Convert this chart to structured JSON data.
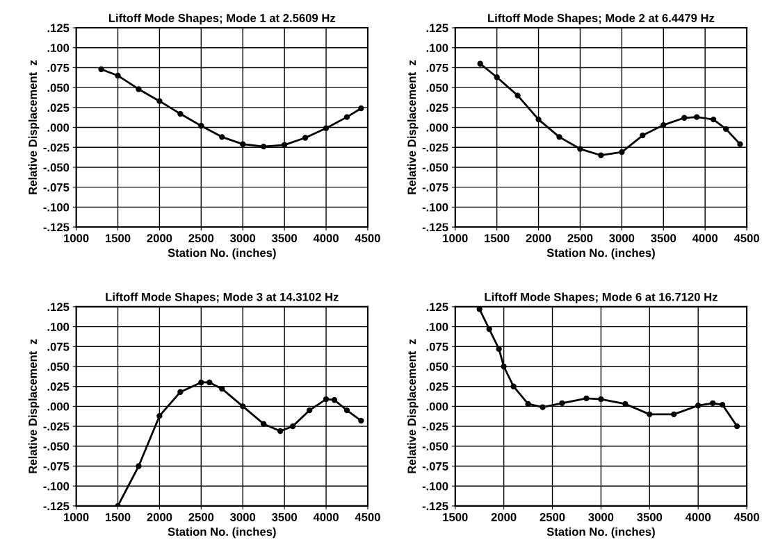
{
  "chart_data": [
    {
      "type": "line",
      "title": "Liftoff Mode Shapes; Mode 1 at 2.5609 Hz",
      "xlabel": "Station No. (inches)",
      "ylabel": "Relative Displacement  z",
      "marker": "circle",
      "grid": true,
      "xlim": [
        1000,
        4500
      ],
      "xticks": [
        1000,
        1500,
        2000,
        2500,
        3000,
        3500,
        4000,
        4500
      ],
      "ylim": [
        -0.125,
        0.125
      ],
      "yticks": [
        {
          "value": -0.125,
          "label": "-.125"
        },
        {
          "value": -0.1,
          "label": "-.100"
        },
        {
          "value": -0.075,
          "label": "-.075"
        },
        {
          "value": -0.05,
          "label": "-.050"
        },
        {
          "value": -0.025,
          "label": "-.025"
        },
        {
          "value": 0,
          "label": ".000"
        },
        {
          "value": 0.025,
          "label": ".025"
        },
        {
          "value": 0.05,
          "label": ".050"
        },
        {
          "value": 0.075,
          "label": ".075"
        },
        {
          "value": 0.1,
          "label": ".100"
        },
        {
          "value": 0.125,
          "label": ".125"
        }
      ],
      "series": [
        {
          "color": "#000000",
          "x": [
            1300,
            1500,
            1750,
            2000,
            2250,
            2500,
            2750,
            3000,
            3250,
            3500,
            3750,
            4000,
            4250,
            4420
          ],
          "values": [
            0.073,
            0.065,
            0.048,
            0.033,
            0.017,
            0.002,
            -0.012,
            -0.021,
            -0.024,
            -0.022,
            -0.013,
            -0.001,
            0.013,
            0.024
          ]
        }
      ]
    },
    {
      "type": "line",
      "title": "Liftoff Mode Shapes; Mode 2 at 6.4479 Hz",
      "xlabel": "Station No. (inches)",
      "ylabel": "Relative Displacement  z",
      "marker": "circle",
      "grid": true,
      "xlim": [
        1000,
        4500
      ],
      "xticks": [
        1000,
        1500,
        2000,
        2500,
        3000,
        3500,
        4000,
        4500
      ],
      "ylim": [
        -0.125,
        0.125
      ],
      "yticks": [
        {
          "value": -0.125,
          "label": "-.125"
        },
        {
          "value": -0.1,
          "label": "-.100"
        },
        {
          "value": -0.075,
          "label": "-.075"
        },
        {
          "value": -0.05,
          "label": "-.050"
        },
        {
          "value": -0.025,
          "label": "-.025"
        },
        {
          "value": 0,
          "label": ".000"
        },
        {
          "value": 0.025,
          "label": ".025"
        },
        {
          "value": 0.05,
          "label": ".050"
        },
        {
          "value": 0.075,
          "label": ".075"
        },
        {
          "value": 0.1,
          "label": ".100"
        },
        {
          "value": 0.125,
          "label": ".125"
        }
      ],
      "series": [
        {
          "color": "#000000",
          "x": [
            1300,
            1500,
            1750,
            2000,
            2250,
            2500,
            2750,
            3000,
            3250,
            3500,
            3750,
            3900,
            4100,
            4250,
            4420
          ],
          "values": [
            0.08,
            0.063,
            0.04,
            0.01,
            -0.012,
            -0.027,
            -0.035,
            -0.031,
            -0.01,
            0.003,
            0.012,
            0.013,
            0.01,
            -0.002,
            -0.021
          ]
        }
      ]
    },
    {
      "type": "line",
      "title": "Liftoff Mode Shapes; Mode 3 at 14.3102 Hz",
      "xlabel": "Station No. (inches)",
      "ylabel": "Relative Displacement  z",
      "marker": "circle",
      "grid": true,
      "xlim": [
        1000,
        4500
      ],
      "xticks": [
        1000,
        1500,
        2000,
        2500,
        3000,
        3500,
        4000,
        4500
      ],
      "ylim": [
        -0.125,
        0.125
      ],
      "yticks": [
        {
          "value": -0.125,
          "label": "-.125"
        },
        {
          "value": -0.1,
          "label": "-.100"
        },
        {
          "value": -0.075,
          "label": "-.075"
        },
        {
          "value": -0.05,
          "label": "-.050"
        },
        {
          "value": -0.025,
          "label": "-.025"
        },
        {
          "value": 0,
          "label": ".000"
        },
        {
          "value": 0.025,
          "label": ".025"
        },
        {
          "value": 0.05,
          "label": ".050"
        },
        {
          "value": 0.075,
          "label": ".075"
        },
        {
          "value": 0.1,
          "label": ".100"
        },
        {
          "value": 0.125,
          "label": ".125"
        }
      ],
      "series": [
        {
          "color": "#000000",
          "x": [
            1500,
            1750,
            2000,
            2250,
            2500,
            2600,
            2750,
            3000,
            3250,
            3450,
            3600,
            3800,
            4000,
            4100,
            4250,
            4420
          ],
          "values": [
            -0.125,
            -0.075,
            -0.012,
            0.018,
            0.03,
            0.03,
            0.022,
            0.0,
            -0.022,
            -0.031,
            -0.025,
            -0.005,
            0.009,
            0.008,
            -0.005,
            -0.018
          ]
        }
      ]
    },
    {
      "type": "line",
      "title": "Liftoff Mode Shapes; Mode 6 at 16.7120 Hz",
      "xlabel": "Station No. (inches)",
      "ylabel": "Relative Displacement  z",
      "marker": "circle",
      "grid": true,
      "xlim": [
        1500,
        4500
      ],
      "xticks": [
        1500,
        2000,
        2500,
        3000,
        3500,
        4000,
        4500
      ],
      "ylim": [
        -0.125,
        0.125
      ],
      "yticks": [
        {
          "value": -0.125,
          "label": "-.125"
        },
        {
          "value": -0.1,
          "label": "-.100"
        },
        {
          "value": -0.075,
          "label": "-.075"
        },
        {
          "value": -0.05,
          "label": "-.050"
        },
        {
          "value": -0.025,
          "label": "-.025"
        },
        {
          "value": 0,
          "label": ".000"
        },
        {
          "value": 0.025,
          "label": ".025"
        },
        {
          "value": 0.05,
          "label": ".050"
        },
        {
          "value": 0.075,
          "label": ".075"
        },
        {
          "value": 0.1,
          "label": ".100"
        },
        {
          "value": 0.125,
          "label": ".125"
        }
      ],
      "series": [
        {
          "color": "#000000",
          "x": [
            1750,
            1850,
            1950,
            2000,
            2100,
            2250,
            2400,
            2600,
            2850,
            3000,
            3250,
            3500,
            3750,
            4000,
            4150,
            4250,
            4400
          ],
          "values": [
            0.122,
            0.097,
            0.072,
            0.05,
            0.025,
            0.003,
            -0.001,
            0.004,
            0.01,
            0.009,
            0.003,
            -0.01,
            -0.01,
            0.001,
            0.004,
            0.002,
            -0.025
          ]
        }
      ]
    }
  ]
}
